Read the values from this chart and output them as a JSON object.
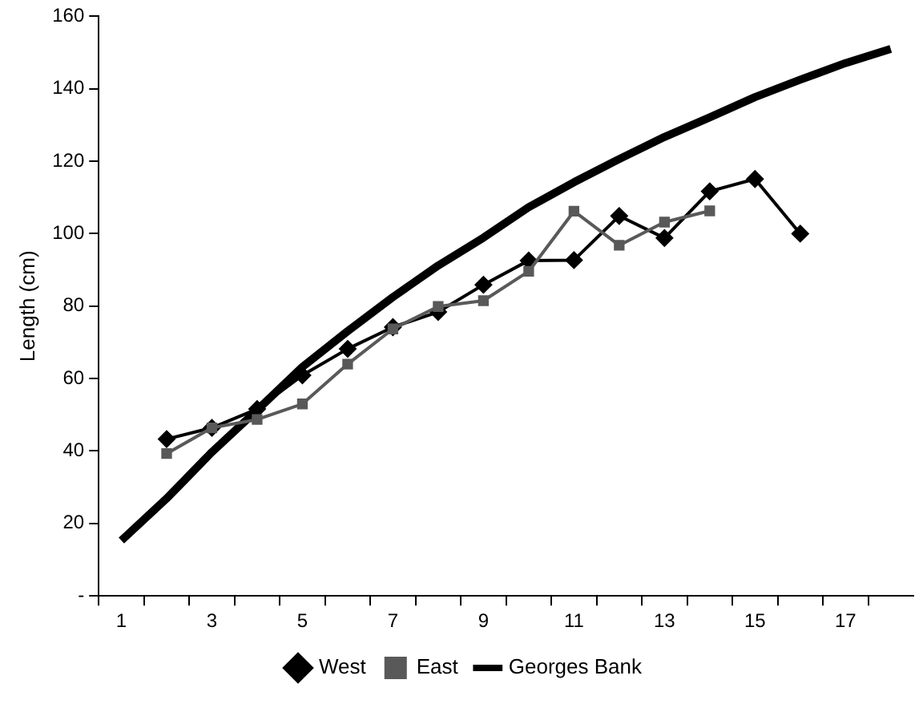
{
  "chart_data": {
    "type": "line",
    "ylabel": "Length (cm)",
    "x": [
      1,
      2,
      3,
      4,
      5,
      6,
      7,
      8,
      9,
      10,
      11,
      12,
      13,
      14,
      15,
      16,
      17,
      18
    ],
    "xlim": [
      0.5,
      18.5
    ],
    "xticks": [
      1,
      3,
      5,
      7,
      9,
      11,
      13,
      15,
      17,
      {
        "value": 0.5,
        "label": null
      },
      {
        "value": 1.5,
        "label": null
      },
      {
        "value": 2.5,
        "label": null
      },
      {
        "value": 3.5,
        "label": null
      },
      {
        "value": 4.5,
        "label": null
      },
      {
        "value": 5.5,
        "label": null
      },
      {
        "value": 6.5,
        "label": null
      },
      {
        "value": 7.5,
        "label": null
      },
      {
        "value": 8.5,
        "label": null
      },
      {
        "value": 9.5,
        "label": null
      },
      {
        "value": 10.5,
        "label": null
      },
      {
        "value": 11.5,
        "label": null
      },
      {
        "value": 12.5,
        "label": null
      },
      {
        "value": 13.5,
        "label": null
      },
      {
        "value": 14.5,
        "label": null
      },
      {
        "value": 15.5,
        "label": null
      },
      {
        "value": 16.5,
        "label": null
      },
      {
        "value": 17.5,
        "label": null
      }
    ],
    "series": [
      {
        "name": "West",
        "color": "#000000",
        "marker": "diamond",
        "values": [
          null,
          43.3,
          46.4,
          51.6,
          60.9,
          68.2,
          74.2,
          78.4,
          85.9,
          92.6,
          92.7,
          104.9,
          98.8,
          111.7,
          115.1,
          100,
          null,
          null
        ]
      },
      {
        "name": "East",
        "color": "#595959",
        "marker": "square",
        "values": [
          null,
          39.3,
          46.4,
          48.7,
          53,
          64,
          73.7,
          79.9,
          81.5,
          89.6,
          106.2,
          96.8,
          103.2,
          106.3,
          null,
          null,
          null,
          null
        ]
      },
      {
        "name": "Georges Bank",
        "color": "#000000",
        "marker": "none",
        "values": [
          15.3,
          26.9,
          39.7,
          51.3,
          63.2,
          73.1,
          82.5,
          91.2,
          98.9,
          107.3,
          114.2,
          120.6,
          126.7,
          132.1,
          137.7,
          142.5,
          147.1,
          151
        ]
      }
    ],
    "ylim": [
      0,
      160
    ],
    "yticks": [
      {
        "value": 0,
        "label": "-"
      },
      20,
      40,
      60,
      80,
      100,
      120,
      140,
      160
    ],
    "grid": false,
    "legend": "bottom",
    "line_style": "solid"
  }
}
